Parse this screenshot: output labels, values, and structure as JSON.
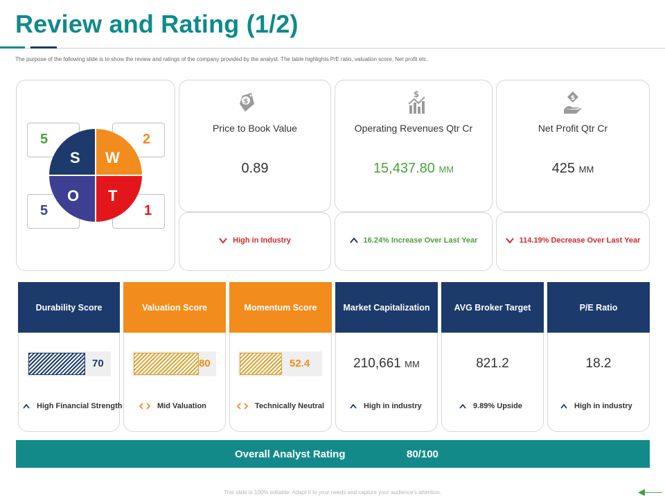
{
  "header": {
    "title": "Review and Rating (1/2)",
    "subtitle": "The purpose of the following slide is to show the review and ratings of the company provided by the analyst. The table highlights P/E ratio, valuation score, Net profit etc."
  },
  "swot": {
    "letters": {
      "s": "S",
      "w": "W",
      "o": "O",
      "t": "T"
    },
    "values": {
      "s": "5",
      "w": "2",
      "o": "5",
      "t": "1"
    },
    "colors": {
      "s": "#1c3a6b",
      "w": "#f28c1c",
      "o": "#3e3e93",
      "t": "#e3171b",
      "s_num": "#4aa23a",
      "w_num": "#f28c1c",
      "o_num": "#3e3e93",
      "t_num": "#e3171b"
    }
  },
  "metrics": [
    {
      "label": "Price to Book Value",
      "value": "0.89",
      "unit": "",
      "icon": "money-tag-icon",
      "trend_text": "High in Industry",
      "trend_dir": "down",
      "trend_color": "#d4282b",
      "value_color": "#333333"
    },
    {
      "label": "Operating Revenues Qtr Cr",
      "value": "15,437.80",
      "unit": "MM",
      "icon": "dollar-chart-icon",
      "trend_text": "16.24% Increase Over Last Year",
      "trend_dir": "up",
      "trend_color": "#4aa23a",
      "value_color": "#4aa23a"
    },
    {
      "label": "Net Profit Qtr Cr",
      "value": "425",
      "unit": "MM",
      "icon": "hand-money-icon",
      "trend_text": "114.19% Decrease Over Last Year",
      "trend_dir": "down",
      "trend_color": "#d4282b",
      "value_color": "#333333"
    }
  ],
  "scores": [
    {
      "header": "Durability Score",
      "type": "bar",
      "value": "70",
      "fill_pct": 70,
      "footer": "High Financial Strength",
      "indicator": "up"
    },
    {
      "header": "Valuation Score",
      "type": "bar",
      "value": "80",
      "fill_pct": 80,
      "footer": "Mid Valuation",
      "indicator": "neutral"
    },
    {
      "header": "Momentum  Score",
      "type": "bar",
      "value": "52.4",
      "fill_pct": 52.4,
      "footer": "Technically  Neutral",
      "indicator": "neutral"
    },
    {
      "header": "Market Capitalization",
      "type": "number",
      "value": "210,661",
      "unit": "MM",
      "footer": "High in industry",
      "indicator": "up"
    },
    {
      "header": "AVG Broker Target",
      "type": "number",
      "value": "821.2",
      "unit": "",
      "footer": "9.89% Upside",
      "indicator": "up"
    },
    {
      "header": "P/E Ratio",
      "type": "number",
      "value": "18.2",
      "unit": "",
      "footer": "High in industry",
      "indicator": "up"
    }
  ],
  "overall": {
    "label": "Overall Analyst Rating",
    "value": "80/100"
  },
  "footer": {
    "note": "This slide is 100% editable. Adapt it to your needs and capture your audience's attention."
  },
  "colors": {
    "teal": "#0f8a8a",
    "navy": "#1c3a6b",
    "orange": "#f28c1c",
    "green": "#4aa23a",
    "red": "#d4282b"
  }
}
